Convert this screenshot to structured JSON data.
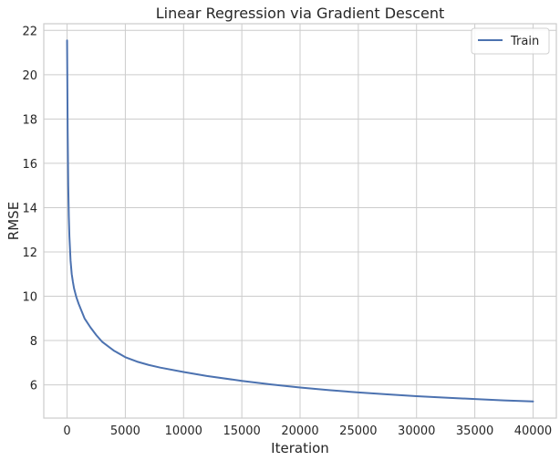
{
  "chart_data": {
    "type": "line",
    "title": "Linear Regression via Gradient Descent",
    "xlabel": "Iteration",
    "ylabel": "RMSE",
    "xlim": [
      -2000,
      42000
    ],
    "ylim": [
      4.5,
      22.3
    ],
    "x_ticks": [
      0,
      5000,
      10000,
      15000,
      20000,
      25000,
      30000,
      35000,
      40000
    ],
    "y_ticks": [
      6,
      8,
      10,
      12,
      14,
      16,
      18,
      20,
      22
    ],
    "grid": true,
    "legend": {
      "position": "top-right",
      "entries": [
        "Train"
      ]
    },
    "colors": {
      "Train": "#4c72b0",
      "grid": "#cccccc",
      "spine": "#cccccc"
    },
    "series": [
      {
        "name": "Train",
        "x": [
          0,
          50,
          100,
          150,
          200,
          300,
          400,
          500,
          600,
          800,
          1000,
          1500,
          2000,
          2500,
          3000,
          4000,
          5000,
          6000,
          7000,
          8000,
          10000,
          12000,
          15000,
          17500,
          20000,
          22500,
          25000,
          27500,
          30000,
          32500,
          35000,
          37500,
          40000
        ],
        "y": [
          21.55,
          17.5,
          15.0,
          13.6,
          12.7,
          11.6,
          11.0,
          10.65,
          10.35,
          9.95,
          9.65,
          9.0,
          8.6,
          8.25,
          7.95,
          7.55,
          7.25,
          7.05,
          6.9,
          6.78,
          6.58,
          6.4,
          6.18,
          6.02,
          5.88,
          5.76,
          5.66,
          5.57,
          5.49,
          5.42,
          5.36,
          5.3,
          5.25
        ]
      }
    ]
  }
}
